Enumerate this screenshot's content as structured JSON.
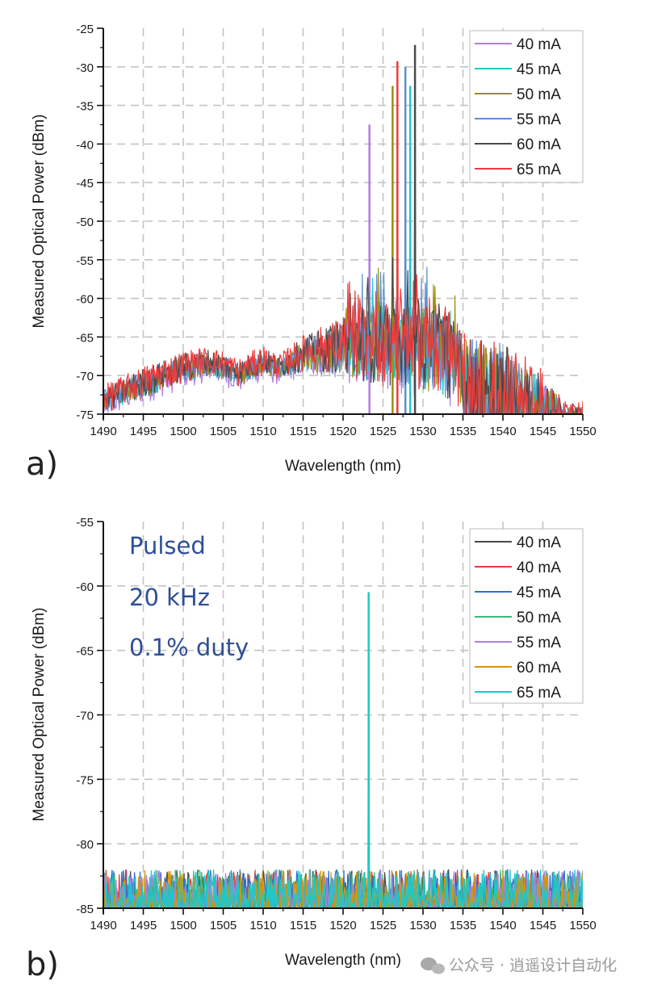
{
  "chart_data": [
    {
      "id": "a",
      "type": "line",
      "panel_label": "a)",
      "title": "",
      "xlabel": "Wavelength (nm)",
      "ylabel": "Measured Optical Power (dBm)",
      "xlim": [
        1490,
        1550
      ],
      "ylim": [
        -75,
        -25
      ],
      "xticks": [
        1490,
        1495,
        1500,
        1505,
        1510,
        1515,
        1520,
        1525,
        1530,
        1535,
        1540,
        1545,
        1550
      ],
      "yticks": [
        -25,
        -30,
        -35,
        -40,
        -45,
        -50,
        -55,
        -60,
        -65,
        -70,
        -75
      ],
      "grid": true,
      "legend_position": "top-right",
      "noise_envelope": {
        "x": [
          1490,
          1495,
          1500,
          1503,
          1505,
          1507,
          1510,
          1512,
          1515,
          1520,
          1525,
          1530,
          1533,
          1535,
          1540,
          1545,
          1548
        ],
        "upper": [
          -72,
          -69.5,
          -67.5,
          -67,
          -67.5,
          -68.5,
          -66.8,
          -68,
          -65.5,
          -63,
          -61,
          -61,
          -62,
          -65,
          -66,
          -70,
          -74
        ],
        "lower": [
          -75,
          -73,
          -71,
          -70,
          -70.5,
          -71.5,
          -70,
          -70.5,
          -69.5,
          -70,
          -71.5,
          -72,
          -73,
          -75,
          -75,
          -75,
          -75
        ]
      },
      "series": [
        {
          "name": "40 mA",
          "color": "#b07ee0",
          "peak_x": 1523.3,
          "peak_y": -37.5
        },
        {
          "name": "45 mA",
          "color": "#1ec8c8",
          "peak_x": 1528.4,
          "peak_y": -32.5
        },
        {
          "name": "50 mA",
          "color": "#9a9010",
          "peak_x": 1526.2,
          "peak_y": -32.5
        },
        {
          "name": "55 mA",
          "color": "#5b8fd0",
          "peak_x": 1527.8,
          "peak_y": -30.0
        },
        {
          "name": "60 mA",
          "color": "#4a4a4a",
          "peak_x": 1529.0,
          "peak_y": -27.2
        },
        {
          "name": "65 mA",
          "color": "#ee3b3b",
          "peak_x": 1526.8,
          "peak_y": -29.3
        }
      ]
    },
    {
      "id": "b",
      "type": "line",
      "panel_label": "b)",
      "title": "",
      "xlabel": "Wavelength (nm)",
      "ylabel": "Measured Optical Power (dBm)",
      "xlim": [
        1490,
        1550
      ],
      "ylim": [
        -85,
        -55
      ],
      "xticks": [
        1490,
        1495,
        1500,
        1505,
        1510,
        1515,
        1520,
        1525,
        1530,
        1535,
        1540,
        1545,
        1550
      ],
      "yticks": [
        -55,
        -60,
        -65,
        -70,
        -75,
        -80,
        -85
      ],
      "grid": true,
      "legend_position": "top-right",
      "annotations": [
        "Pulsed",
        "20 kHz",
        "0.1% duty"
      ],
      "noise_floor": {
        "lower": -85,
        "upper": -82
      },
      "series": [
        {
          "name": "40 mA",
          "color": "#4a4a4a"
        },
        {
          "name": "40 mA",
          "color": "#ee3b3b"
        },
        {
          "name": "45 mA",
          "color": "#2b6fd6"
        },
        {
          "name": "50 mA",
          "color": "#3cb878"
        },
        {
          "name": "55 mA",
          "color": "#b07ee0"
        },
        {
          "name": "60 mA",
          "color": "#d4960a"
        },
        {
          "name": "65 mA",
          "color": "#1ec8c8",
          "peak_x": 1523.2,
          "peak_y": -60.5
        }
      ]
    }
  ],
  "watermark": "公众号 · 逍遥设计自动化"
}
